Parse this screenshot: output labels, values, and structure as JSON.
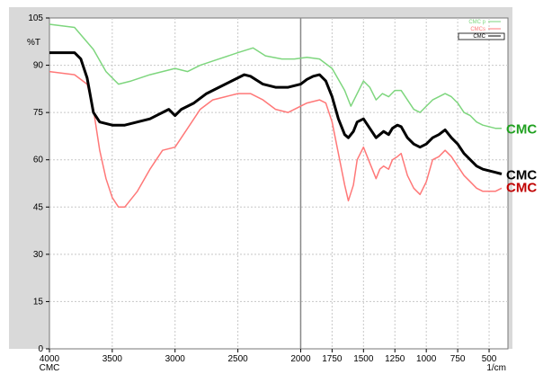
{
  "chart_data": {
    "type": "line",
    "ylabel": "%T",
    "xlabel_left": "CMC",
    "xunit": "1/cm",
    "xlim": [
      4000,
      350
    ],
    "ylim": [
      0,
      105
    ],
    "x_ticks": [
      4000,
      3500,
      3000,
      2500,
      2000,
      1750,
      1500,
      1250,
      1000,
      750,
      500
    ],
    "y_ticks": [
      0,
      15,
      30,
      45,
      60,
      75,
      90,
      105
    ],
    "grid": true,
    "series": [
      {
        "name": "CMC p",
        "side_label": "CMC",
        "color": "#7ed67e",
        "legend_label": "CMC p",
        "points": [
          [
            4000,
            103
          ],
          [
            3800,
            102
          ],
          [
            3650,
            95
          ],
          [
            3550,
            88
          ],
          [
            3450,
            84
          ],
          [
            3350,
            85
          ],
          [
            3200,
            87
          ],
          [
            3000,
            89
          ],
          [
            2900,
            88
          ],
          [
            2800,
            90
          ],
          [
            2650,
            92
          ],
          [
            2500,
            94
          ],
          [
            2380,
            95.5
          ],
          [
            2280,
            93
          ],
          [
            2150,
            92
          ],
          [
            2050,
            92
          ],
          [
            1950,
            92.5
          ],
          [
            1850,
            92
          ],
          [
            1750,
            89
          ],
          [
            1650,
            82
          ],
          [
            1600,
            77
          ],
          [
            1550,
            81
          ],
          [
            1500,
            85
          ],
          [
            1450,
            83
          ],
          [
            1400,
            79
          ],
          [
            1350,
            81
          ],
          [
            1300,
            80
          ],
          [
            1250,
            82
          ],
          [
            1200,
            82
          ],
          [
            1150,
            79
          ],
          [
            1100,
            76
          ],
          [
            1050,
            75
          ],
          [
            1000,
            77
          ],
          [
            950,
            79
          ],
          [
            900,
            80
          ],
          [
            850,
            81
          ],
          [
            800,
            80
          ],
          [
            750,
            78
          ],
          [
            700,
            75
          ],
          [
            650,
            74
          ],
          [
            600,
            72
          ],
          [
            550,
            71
          ],
          [
            450,
            70
          ],
          [
            400,
            70
          ]
        ]
      },
      {
        "name": "CMCs",
        "side_label": "CMC",
        "color": "#ff7878",
        "legend_label": "CMCs",
        "points": [
          [
            4000,
            88
          ],
          [
            3800,
            87
          ],
          [
            3700,
            84
          ],
          [
            3650,
            76
          ],
          [
            3600,
            63
          ],
          [
            3550,
            54
          ],
          [
            3500,
            48
          ],
          [
            3450,
            45
          ],
          [
            3400,
            45
          ],
          [
            3300,
            50
          ],
          [
            3200,
            57
          ],
          [
            3100,
            63
          ],
          [
            3000,
            64
          ],
          [
            2900,
            70
          ],
          [
            2800,
            76
          ],
          [
            2700,
            79
          ],
          [
            2600,
            80
          ],
          [
            2500,
            81
          ],
          [
            2400,
            81
          ],
          [
            2300,
            79
          ],
          [
            2200,
            76
          ],
          [
            2100,
            75
          ],
          [
            2050,
            76
          ],
          [
            2000,
            77
          ],
          [
            1950,
            78
          ],
          [
            1850,
            79
          ],
          [
            1800,
            78
          ],
          [
            1750,
            72
          ],
          [
            1700,
            62
          ],
          [
            1650,
            52
          ],
          [
            1620,
            47
          ],
          [
            1580,
            52
          ],
          [
            1550,
            60
          ],
          [
            1500,
            64
          ],
          [
            1450,
            59
          ],
          [
            1400,
            54
          ],
          [
            1370,
            57
          ],
          [
            1340,
            58
          ],
          [
            1300,
            57
          ],
          [
            1270,
            60
          ],
          [
            1230,
            61
          ],
          [
            1200,
            62
          ],
          [
            1150,
            55
          ],
          [
            1100,
            51
          ],
          [
            1050,
            49
          ],
          [
            1000,
            53
          ],
          [
            950,
            60
          ],
          [
            900,
            61
          ],
          [
            850,
            63
          ],
          [
            800,
            61
          ],
          [
            750,
            58
          ],
          [
            700,
            55
          ],
          [
            650,
            53
          ],
          [
            600,
            51
          ],
          [
            550,
            50
          ],
          [
            450,
            50
          ],
          [
            400,
            51
          ]
        ]
      },
      {
        "name": "CMC",
        "side_label": "CMC",
        "color": "#000000",
        "legend_label": "CMC",
        "points": [
          [
            4000,
            94
          ],
          [
            3800,
            94
          ],
          [
            3750,
            92
          ],
          [
            3700,
            86
          ],
          [
            3650,
            75
          ],
          [
            3600,
            72
          ],
          [
            3500,
            71
          ],
          [
            3400,
            71
          ],
          [
            3300,
            72
          ],
          [
            3200,
            73
          ],
          [
            3100,
            75
          ],
          [
            3050,
            76
          ],
          [
            3000,
            74
          ],
          [
            2950,
            76
          ],
          [
            2850,
            78
          ],
          [
            2750,
            81
          ],
          [
            2650,
            83
          ],
          [
            2550,
            85
          ],
          [
            2450,
            87
          ],
          [
            2400,
            86.5
          ],
          [
            2300,
            84
          ],
          [
            2200,
            83
          ],
          [
            2100,
            83
          ],
          [
            2000,
            84
          ],
          [
            1950,
            85.5
          ],
          [
            1900,
            86.5
          ],
          [
            1850,
            87
          ],
          [
            1800,
            85
          ],
          [
            1750,
            80
          ],
          [
            1700,
            73
          ],
          [
            1650,
            68
          ],
          [
            1620,
            67
          ],
          [
            1580,
            69
          ],
          [
            1550,
            72
          ],
          [
            1500,
            73
          ],
          [
            1450,
            70
          ],
          [
            1400,
            67
          ],
          [
            1370,
            68
          ],
          [
            1340,
            69
          ],
          [
            1300,
            68
          ],
          [
            1270,
            70
          ],
          [
            1230,
            71
          ],
          [
            1200,
            70.5
          ],
          [
            1150,
            67
          ],
          [
            1100,
            65
          ],
          [
            1050,
            64
          ],
          [
            1000,
            65
          ],
          [
            950,
            67
          ],
          [
            900,
            68
          ],
          [
            850,
            69.5
          ],
          [
            800,
            67
          ],
          [
            750,
            65
          ],
          [
            700,
            62
          ],
          [
            650,
            60
          ],
          [
            600,
            58
          ],
          [
            550,
            57
          ],
          [
            450,
            56
          ],
          [
            400,
            55.5
          ]
        ]
      }
    ],
    "vertical_marker_x": 2000
  }
}
